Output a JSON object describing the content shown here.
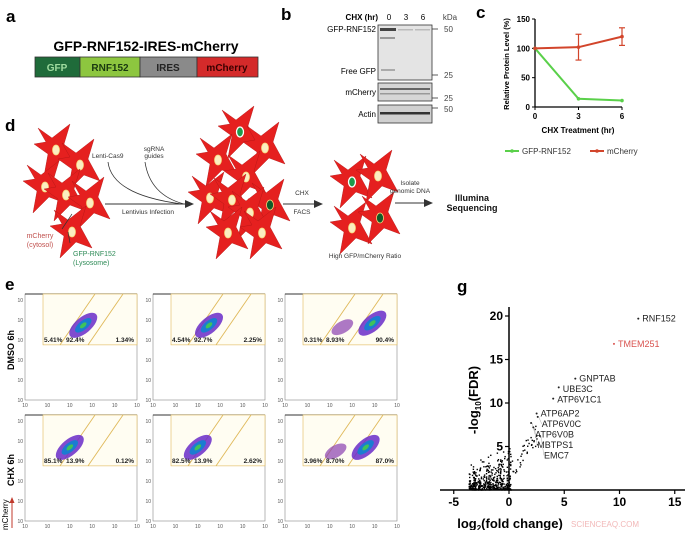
{
  "panels": {
    "a": "a",
    "b": "b",
    "c": "c",
    "d": "d",
    "e": "e",
    "g": "g"
  },
  "construct": {
    "title": "GFP-RNF152-IRES-mCherry",
    "segments": [
      {
        "label": "GFP",
        "color": "#1f6b3a"
      },
      {
        "label": "RNF152",
        "color": "#8dc63f"
      },
      {
        "label": "IRES",
        "color": "#8a8a8a"
      },
      {
        "label": "mCherry",
        "color": "#d42a2a"
      }
    ]
  },
  "blot": {
    "header": "CHX (hr)",
    "lanes": [
      "0",
      "3",
      "6"
    ],
    "unit": "kDa",
    "rows": [
      "GFP-RNF152",
      "Free GFP",
      "mCherry",
      "Actin"
    ],
    "markers": [
      "50",
      "25",
      "25",
      "50"
    ]
  },
  "chart_data": [
    {
      "type": "line",
      "panel": "c",
      "xlabel": "CHX Treatment (hr)",
      "ylabel": "Relative Protein Level (%)",
      "x": [
        0,
        3,
        6
      ],
      "xticks": [
        "0",
        "3",
        "6"
      ],
      "yticks": [
        "0",
        "50",
        "100",
        "150"
      ],
      "ylim": [
        0,
        150
      ],
      "legend": "bottom",
      "series": [
        {
          "name": "GFP-RNF152",
          "values": [
            100,
            14,
            11
          ],
          "color": "#5ad04a"
        },
        {
          "name": "mCherry",
          "values": [
            100,
            102,
            120
          ],
          "error": [
            0,
            22,
            15
          ],
          "color": "#d2452b"
        }
      ]
    },
    {
      "type": "scatter",
      "panel": "g",
      "xlabel": "log2(fold change)",
      "xlabel_main": "log",
      "xlabel_sub": "2",
      "xlabel_rest": "(fold change)",
      "ylabel_main": "-log",
      "ylabel_sub": "10",
      "ylabel_rest": "(FDR)",
      "xticks": [
        "-5",
        "0",
        "5",
        "10",
        "15"
      ],
      "yticks": [
        "5",
        "10",
        "15",
        "20"
      ],
      "xlim": [
        -5,
        15
      ],
      "ylim": [
        0,
        20
      ],
      "labeled_points": [
        {
          "gene": "RNF152",
          "x": 11.7,
          "y": 19.7,
          "color": "#222222"
        },
        {
          "gene": "TMEM251",
          "x": 9.5,
          "y": 16.8,
          "color": "#d9534f"
        },
        {
          "gene": "GNPTAB",
          "x": 6.0,
          "y": 12.8,
          "color": "#222222"
        },
        {
          "gene": "UBE3C",
          "x": 4.5,
          "y": 11.8,
          "color": "#222222"
        },
        {
          "gene": "ATP6V1C1",
          "x": 4.0,
          "y": 10.5,
          "color": "#222222"
        },
        {
          "gene": "ATP6AP2",
          "x": 2.5,
          "y": 8.8,
          "color": "#222222"
        },
        {
          "gene": "ATP6V0C",
          "x": 2.6,
          "y": 8.4,
          "color": "#222222"
        },
        {
          "gene": "ATP6V0B",
          "x": 2.0,
          "y": 7.7,
          "color": "#222222"
        },
        {
          "gene": "MBTPS1",
          "x": 2.2,
          "y": 7.2,
          "color": "#222222"
        },
        {
          "gene": "EMC7",
          "x": 2.8,
          "y": 6.2,
          "color": "#222222"
        }
      ]
    }
  ],
  "screen": {
    "labels": {
      "lenti": "Lenti-Cas9",
      "sgrna1": "sgRNA",
      "sgrna2": "guides",
      "infection": "Lentivius Infection",
      "chx": "CHX",
      "facs": "FACS",
      "isolate1": "Isolate",
      "isolate2": "genomic DNA",
      "illumina1": "Illumina",
      "illumina2": "Sequencing",
      "mcherry1": "mCherry",
      "mcherry2": "(cytosol)",
      "gfp1": "GFP-RNF152",
      "gfp2": "(Lysosome)",
      "ratio": "High GFP/mCherry Ratio"
    }
  },
  "facs": {
    "rows": [
      "DMSO 6h",
      "CHX 6h"
    ],
    "yaxis_label": "mCherry",
    "tick_label": "10",
    "plots": [
      [
        "5.41%",
        "92.4%",
        "1.34%"
      ],
      [
        "4.54%",
        "92.7%",
        "2.25%"
      ],
      [
        "0.31%",
        "8.93%",
        "90.4%"
      ],
      [
        "85.1%",
        "13.9%",
        "0.12%"
      ],
      [
        "82.5%",
        "13.9%",
        "2.62%"
      ],
      [
        "3.96%",
        "8.70%",
        "87.0%"
      ]
    ]
  },
  "watermark": "SCIENCEAQ.COM"
}
